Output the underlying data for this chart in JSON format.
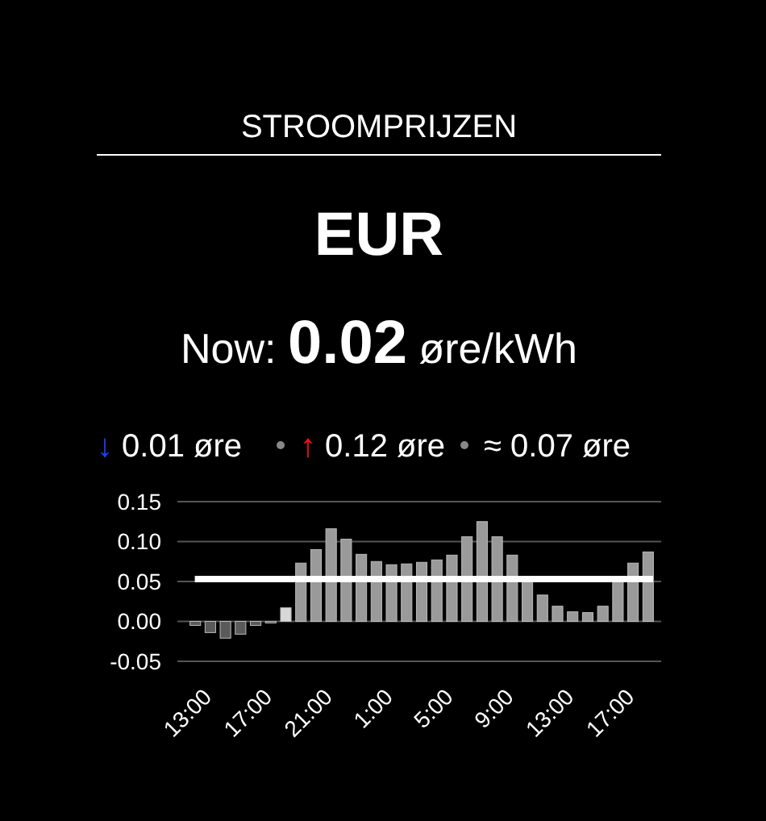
{
  "chart_data": {
    "type": "bar",
    "title": "STROOMPRIJZEN",
    "subtitle": "EUR",
    "annotations": [
      "Now: 0.02 øre/kWh",
      "↓ 0.01 øre",
      "↑ 0.12 øre",
      "≈ 0.07 øre"
    ],
    "categories": [
      "13:00",
      null,
      null,
      null,
      "17:00",
      null,
      null,
      null,
      "21:00",
      null,
      null,
      null,
      "1:00",
      null,
      null,
      null,
      "5:00",
      null,
      null,
      null,
      "9:00",
      null,
      null,
      null,
      "13:00",
      null,
      null,
      null,
      "17:00",
      null,
      null
    ],
    "values": [
      -0.005,
      -0.014,
      -0.021,
      -0.016,
      -0.005,
      -0.002,
      0.017,
      0.073,
      0.09,
      0.116,
      0.103,
      0.084,
      0.075,
      0.071,
      0.072,
      0.074,
      0.077,
      0.083,
      0.106,
      0.125,
      0.106,
      0.083,
      0.051,
      0.033,
      0.019,
      0.012,
      0.011,
      0.019,
      0.05,
      0.073,
      0.087
    ],
    "colors": [
      "#5a5a5a",
      "#5a5a5a",
      "#5a5a5a",
      "#5a5a5a",
      "#5a5a5a",
      "#5a5a5a",
      "#d8d8d8",
      "#9a9a9a",
      "#9a9a9a",
      "#9a9a9a",
      "#9a9a9a",
      "#9a9a9a",
      "#9a9a9a",
      "#9a9a9a",
      "#9a9a9a",
      "#9a9a9a",
      "#9a9a9a",
      "#9a9a9a",
      "#9a9a9a",
      "#9a9a9a",
      "#9a9a9a",
      "#9a9a9a",
      "#9a9a9a",
      "#9a9a9a",
      "#9a9a9a",
      "#9a9a9a",
      "#9a9a9a",
      "#9a9a9a",
      "#9a9a9a",
      "#9a9a9a",
      "#9a9a9a"
    ],
    "ylim": [
      -0.05,
      0.15
    ],
    "yticks": [
      {
        "value": -0.05,
        "label": "-0.05"
      },
      {
        "value": 0,
        "label": "0.00"
      },
      {
        "value": 0.05,
        "label": "0.05"
      },
      {
        "value": 0.1,
        "label": "0.10"
      },
      {
        "value": 0.15,
        "label": "0.15"
      }
    ],
    "grid": "y",
    "ref_lines": [
      {
        "axis": "y",
        "value": 0.053,
        "color": "#ffffff"
      }
    ]
  }
}
